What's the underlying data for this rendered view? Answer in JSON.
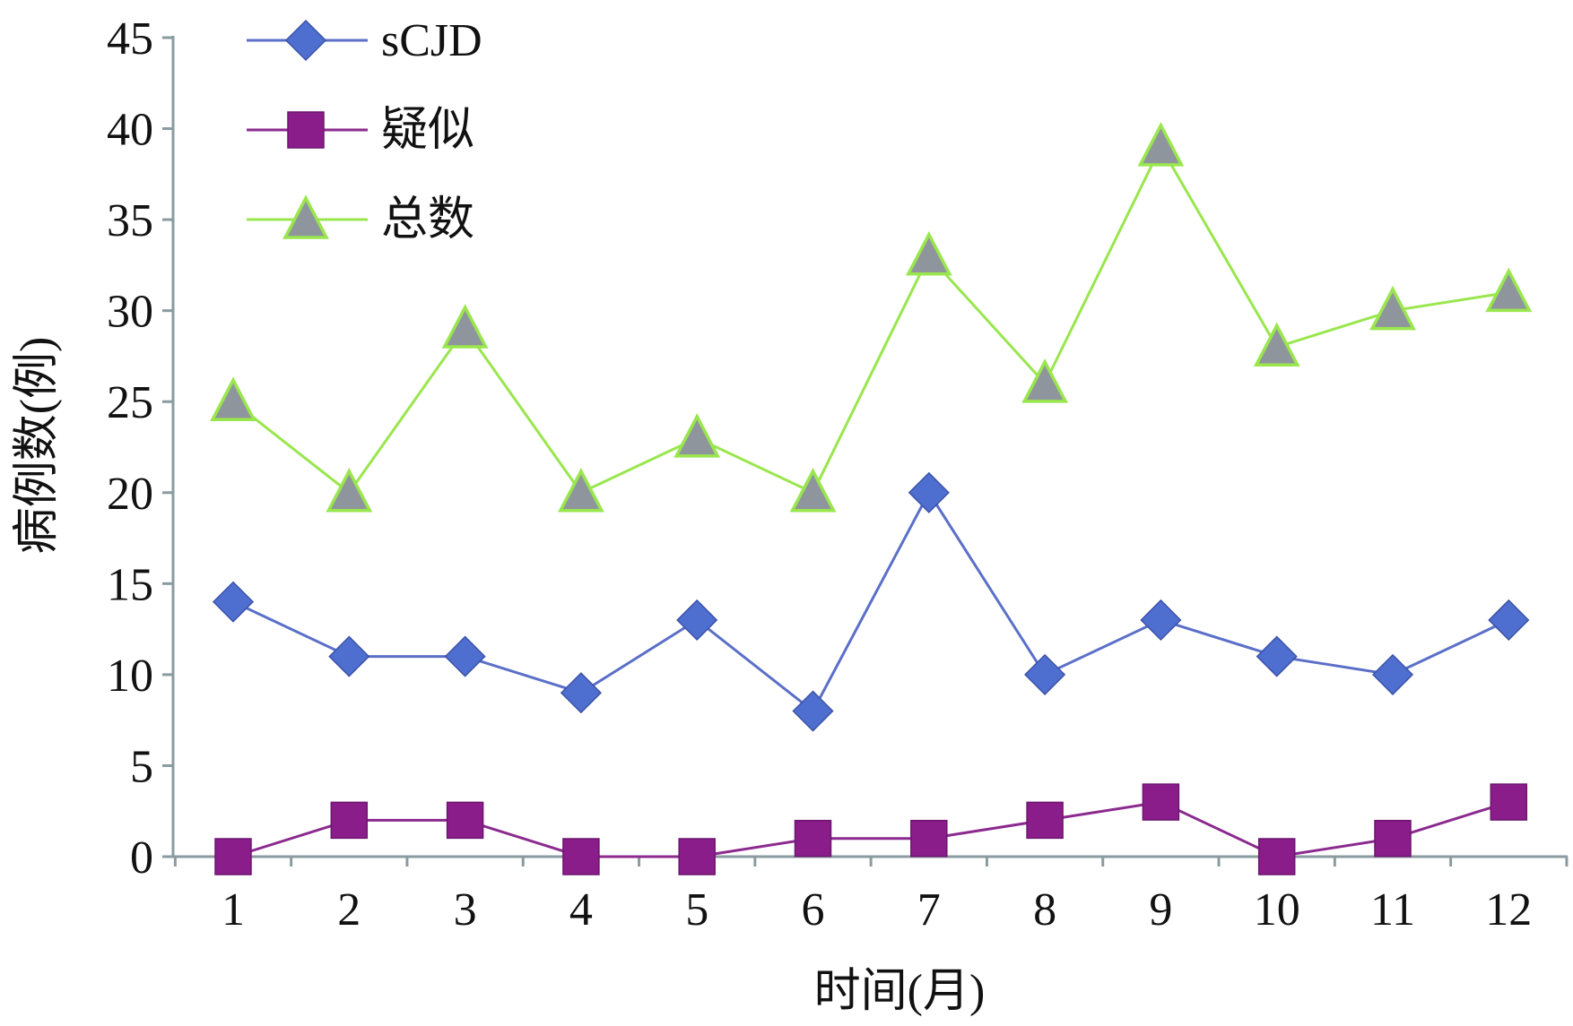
{
  "chart_data": {
    "type": "line",
    "categories": [
      "1",
      "2",
      "3",
      "4",
      "5",
      "6",
      "7",
      "8",
      "9",
      "10",
      "11",
      "12"
    ],
    "series": [
      {
        "name": "sCJD",
        "marker": "diamond",
        "line_color": "#5b6fc8",
        "marker_color": "#4f6fd0",
        "values": [
          14,
          11,
          11,
          9,
          13,
          8,
          20,
          10,
          13,
          11,
          10,
          13
        ]
      },
      {
        "name": "疑似",
        "marker": "square",
        "line_color": "#8b2a8e",
        "marker_color": "#8b1d8a",
        "values": [
          0,
          2,
          2,
          0,
          0,
          1,
          1,
          2,
          3,
          0,
          1,
          3
        ]
      },
      {
        "name": "总数",
        "marker": "triangle",
        "line_color": "#99e64d",
        "marker_color": "#8f959c",
        "values": [
          25,
          20,
          29,
          20,
          23,
          20,
          33,
          26,
          39,
          28,
          30,
          31
        ]
      }
    ],
    "xlabel": "时间(月)",
    "ylabel": "病例数(例)",
    "ylim": [
      0,
      45
    ],
    "yticks": [
      "0",
      "5",
      "10",
      "15",
      "20",
      "25",
      "30",
      "35",
      "40",
      "45"
    ],
    "grid": false,
    "legend_position": "top-left"
  },
  "colors": {
    "axis": "#8a9ba0"
  }
}
